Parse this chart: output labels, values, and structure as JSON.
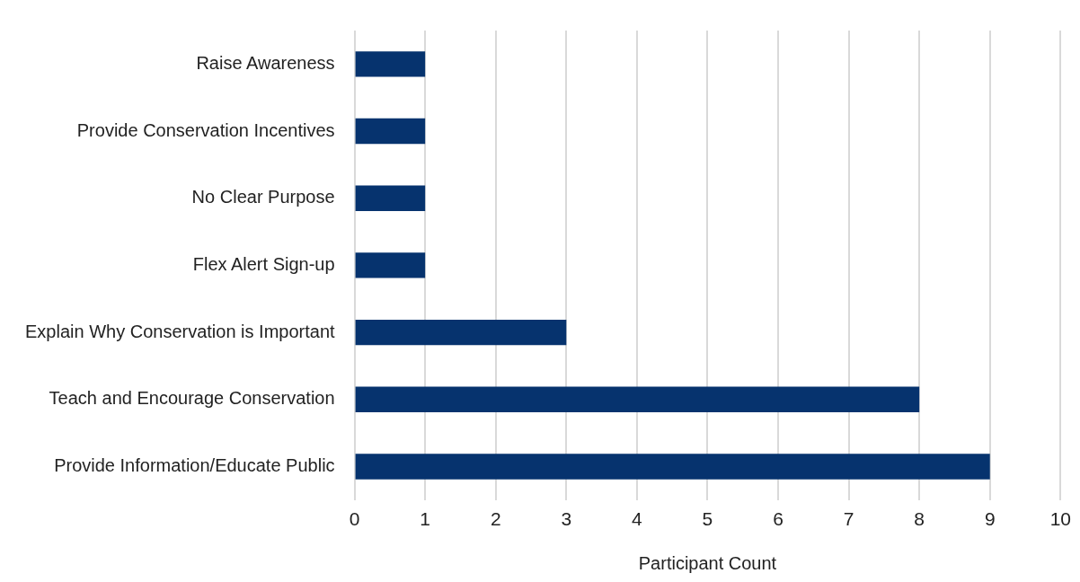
{
  "chart_data": {
    "type": "bar",
    "orientation": "horizontal",
    "xlabel": "Participant Count",
    "categories": [
      "Raise Awareness",
      "Provide Conservation Incentives",
      "No Clear Purpose",
      "Flex Alert Sign-up",
      "Explain Why Conservation is Important",
      "Teach and Encourage Conservation",
      "Provide Information/Educate Public"
    ],
    "values": [
      1,
      1,
      1,
      1,
      3,
      8,
      9
    ],
    "color": "#06336e",
    "xlim": [
      0,
      10
    ],
    "xticks": [
      0,
      1,
      2,
      3,
      4,
      5,
      6,
      7,
      8,
      9,
      10
    ],
    "grid": "x",
    "legend": false
  }
}
